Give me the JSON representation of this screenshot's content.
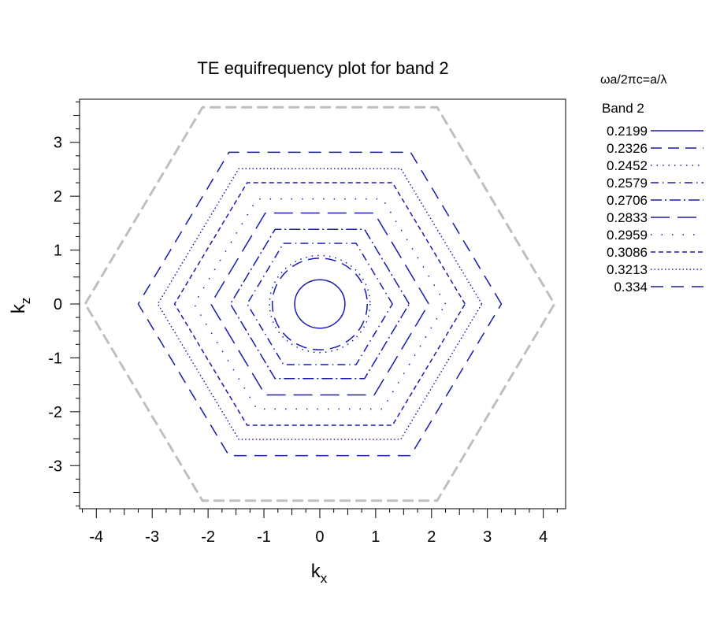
{
  "chart_data": {
    "type": "contour",
    "title": "TE equifrequency plot for band 2",
    "xlabel": "k",
    "xlabel_sub": "x",
    "ylabel": "k",
    "ylabel_sub": "z",
    "xlim": [
      -4.3,
      4.4
    ],
    "ylim": [
      -3.8,
      3.8
    ],
    "x_ticks": [
      -4,
      -3,
      -2,
      -1,
      0,
      1,
      2,
      3,
      4
    ],
    "y_ticks": [
      -3,
      -2,
      -1,
      0,
      1,
      2,
      3
    ],
    "legend": {
      "heading": "ωa/2πc=a/λ",
      "subheading": "Band 2",
      "placement": "right",
      "entries": [
        {
          "label": "0.2199",
          "dash": "solid"
        },
        {
          "label": "0.2326",
          "dash": "14,8"
        },
        {
          "label": "0.2452",
          "dash": "1.5,6"
        },
        {
          "label": "0.2579",
          "dash": "10,5,1.5,5"
        },
        {
          "label": "0.2706",
          "dash": "14,4,2,4"
        },
        {
          "label": "0.2833",
          "dash": "24,10"
        },
        {
          "label": "0.2959",
          "dash": "1.5,12"
        },
        {
          "label": "0.3086",
          "dash": "6,4"
        },
        {
          "label": "0.3213",
          "dash": "1.5,3"
        },
        {
          "label": "0.334",
          "dash": "16,10"
        }
      ]
    },
    "brillouin_zone": {
      "shape": "hexagon",
      "vertices": [
        [
          -4.2,
          0
        ],
        [
          -2.1,
          3.65
        ],
        [
          2.1,
          3.65
        ],
        [
          4.2,
          0
        ],
        [
          2.1,
          -3.65
        ],
        [
          -2.1,
          -3.65
        ]
      ],
      "color": "#bfbfbf",
      "style": "dashed"
    },
    "contours": [
      {
        "level": "0.2199",
        "shape": "circle",
        "center": [
          0,
          0
        ],
        "radius": 0.45
      },
      {
        "level": "0.2326",
        "shape": "circle",
        "center": [
          0,
          0
        ],
        "radius": 0.85
      },
      {
        "level": "0.2452",
        "shape": "circle",
        "center": [
          0,
          0
        ],
        "radius": 0.9
      },
      {
        "level": "0.2579",
        "shape": "hexagon",
        "center": [
          0,
          0
        ],
        "radius": 1.3
      },
      {
        "level": "0.2706",
        "shape": "hexagon",
        "center": [
          0,
          0
        ],
        "radius": 1.6
      },
      {
        "level": "0.2833",
        "shape": "hexagon",
        "center": [
          0,
          0
        ],
        "radius": 1.95
      },
      {
        "level": "0.2959",
        "shape": "hexagon",
        "center": [
          0,
          0
        ],
        "radius": 2.25
      },
      {
        "level": "0.3086",
        "shape": "hexagon",
        "center": [
          0,
          0
        ],
        "radius": 2.6
      },
      {
        "level": "0.3213",
        "shape": "hexagon",
        "center": [
          0,
          0
        ],
        "radius": 2.9
      },
      {
        "level": "0.334",
        "shape": "hexagon",
        "center": [
          0,
          0
        ],
        "radius": 3.25
      }
    ],
    "colors": {
      "contour": "#1a1ab0",
      "zone": "#bfbfbf",
      "axis": "#000000"
    }
  }
}
